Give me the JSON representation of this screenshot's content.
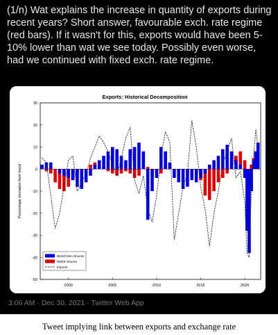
{
  "tweet": {
    "text": "(1/n) Wat explains the increase in quantity of exports during recent years? Short answer, favourable exch. rate regime (red bars). If it wasn't for this, exports would have been 5-10% lower than wat we see today. Possibly even worse, had we continued with fixed exch. rate regime.",
    "timestamp": "3:06 AM · Dec 30, 2021 · Twitter Web App"
  },
  "caption": "Tweet implying link between exports and exchange rate",
  "colors": {
    "world_dem": "#0000dd",
    "reer": "#dd0000",
    "exports": "#333333"
  },
  "chart_data": {
    "type": "bar",
    "title": "Exports: Historical Decomposition",
    "ylabel": "Percentage deviation from trend",
    "ylim": [
      -50,
      30
    ],
    "yticks": [
      30,
      20,
      10,
      0,
      -10,
      -20,
      -30,
      -40,
      -50
    ],
    "xlim": [
      1996.8,
      2021.8
    ],
    "xticks": [
      2000,
      2005,
      2010,
      2015,
      2020
    ],
    "legend_position": "bottom-left",
    "series": [
      {
        "name": "World Dem Shocks",
        "type": "bar",
        "x": [
          1997.0,
          1997.5,
          1998.0,
          1998.5,
          1999.0,
          1999.5,
          2000.0,
          2000.5,
          2001.0,
          2001.5,
          2002.0,
          2002.5,
          2003.0,
          2003.5,
          2004.0,
          2004.5,
          2005.0,
          2005.5,
          2006.0,
          2006.5,
          2007.0,
          2007.5,
          2008.0,
          2008.5,
          2009.0,
          2009.5,
          2010.0,
          2010.5,
          2011.0,
          2011.5,
          2012.0,
          2012.5,
          2013.0,
          2013.5,
          2014.0,
          2014.5,
          2015.0,
          2015.5,
          2016.0,
          2016.5,
          2017.0,
          2017.5,
          2018.0,
          2018.5,
          2019.0,
          2019.5,
          2020.0,
          2020.25,
          2020.5,
          2020.75,
          2021.0,
          2021.25,
          2021.5
        ],
        "values": [
          2,
          3,
          3,
          0,
          -2,
          -3,
          -4,
          -5,
          -8,
          -9,
          -6,
          -3,
          2,
          4,
          6,
          8,
          10,
          9,
          6,
          4,
          9,
          10,
          12,
          8,
          -23,
          -10,
          -4,
          10,
          8,
          3,
          -4,
          -6,
          -9,
          -8,
          -5,
          -6,
          -4,
          -2,
          2,
          4,
          6,
          9,
          11,
          8,
          4,
          2,
          -4,
          -28,
          -38,
          -10,
          4,
          8,
          12
        ]
      },
      {
        "name": "REER Shocks",
        "type": "bar",
        "x": [
          1997.0,
          1997.5,
          1998.0,
          1998.5,
          1999.0,
          1999.5,
          2000.0,
          2000.5,
          2001.0,
          2001.5,
          2002.0,
          2002.5,
          2003.0,
          2003.5,
          2004.0,
          2004.5,
          2005.0,
          2005.5,
          2006.0,
          2006.5,
          2007.0,
          2007.5,
          2008.0,
          2008.5,
          2009.0,
          2009.5,
          2010.0,
          2010.5,
          2011.0,
          2011.5,
          2012.0,
          2012.5,
          2013.0,
          2013.5,
          2014.0,
          2014.5,
          2015.0,
          2015.5,
          2016.0,
          2016.5,
          2017.0,
          2017.5,
          2018.0,
          2018.5,
          2019.0,
          2019.5,
          2020.0,
          2020.25,
          2020.5,
          2020.75,
          2021.0,
          2021.25,
          2021.5
        ],
        "values": [
          1,
          -1,
          -2,
          -6,
          -9,
          -10,
          -8,
          -5,
          -3,
          -2,
          -1,
          2,
          3,
          2,
          1,
          -1,
          -2,
          -3,
          -2,
          -1,
          -2,
          -4,
          -3,
          2,
          1,
          -3,
          -1,
          -2,
          1,
          2,
          -1,
          -2,
          -1,
          -3,
          -2,
          -1,
          -5,
          -12,
          -14,
          -10,
          -6,
          -4,
          -2,
          3,
          6,
          8,
          4,
          -6,
          -4,
          2,
          5,
          8,
          6
        ]
      },
      {
        "name": "Exports",
        "type": "line",
        "x": [
          1997.0,
          1997.5,
          1998.0,
          1998.5,
          1999.0,
          1999.5,
          2000.0,
          2000.5,
          2001.0,
          2001.5,
          2002.0,
          2002.5,
          2003.0,
          2003.5,
          2004.0,
          2004.5,
          2005.0,
          2005.5,
          2006.0,
          2006.5,
          2007.0,
          2007.5,
          2008.0,
          2008.5,
          2009.0,
          2009.5,
          2010.0,
          2010.5,
          2011.0,
          2011.5,
          2012.0,
          2012.5,
          2013.0,
          2013.5,
          2014.0,
          2014.5,
          2015.0,
          2015.5,
          2016.0,
          2016.5,
          2017.0,
          2017.5,
          2018.0,
          2018.5,
          2019.0,
          2019.5,
          2020.0,
          2020.25,
          2020.5,
          2020.75,
          2021.0,
          2021.25,
          2021.5
        ],
        "values": [
          5,
          3,
          -12,
          -27,
          -20,
          -8,
          4,
          6,
          -10,
          -6,
          -2,
          5,
          10,
          15,
          12,
          8,
          2,
          -3,
          5,
          14,
          19,
          -5,
          -11,
          -3,
          -18,
          -24,
          -12,
          6,
          17,
          12,
          -32,
          -20,
          -8,
          -2,
          22,
          10,
          -8,
          -18,
          -35,
          -20,
          -10,
          2,
          8,
          14,
          -4,
          -1,
          -15,
          -38,
          -40,
          -8,
          6,
          18,
          10
        ]
      }
    ]
  }
}
